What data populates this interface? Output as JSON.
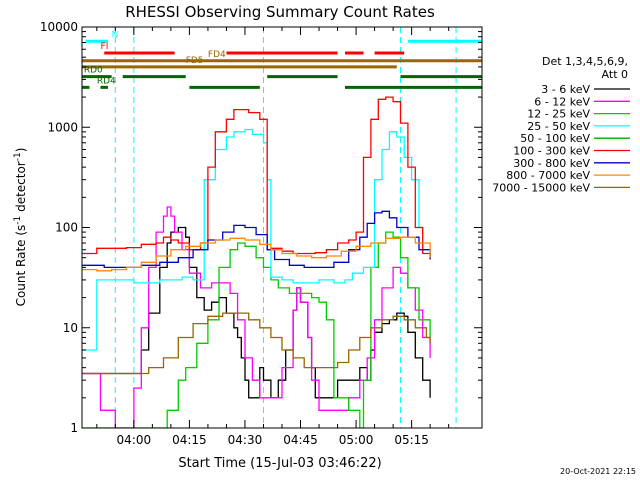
{
  "chart_data": {
    "type": "line",
    "title": "RHESSI Observing Summary Count Rates",
    "xlabel": "Start Time (15-Jul-03 03:46:22)",
    "ylabel_main": "Count Rate (s",
    "ylabel_sup1": "-1",
    "ylabel_mid": " detector",
    "ylabel_sup2": "-1",
    "ylabel_end": ")",
    "yscale": "log",
    "ylim": [
      1,
      10000
    ],
    "xlim_minutes": [
      -14,
      94
    ],
    "x_ticks": [
      {
        "m": 0,
        "label": "04:00"
      },
      {
        "m": 15,
        "label": "04:15"
      },
      {
        "m": 30,
        "label": "04:30"
      },
      {
        "m": 45,
        "label": "04:45"
      },
      {
        "m": 60,
        "label": "05:00"
      },
      {
        "m": 75,
        "label": "05:15"
      }
    ],
    "y_ticks": [
      {
        "v": 1,
        "label": "1"
      },
      {
        "v": 10,
        "label": "10"
      },
      {
        "v": 100,
        "label": "100"
      },
      {
        "v": 1000,
        "label": "1000"
      },
      {
        "v": 10000,
        "label": "10000"
      }
    ],
    "legend_header": [
      "Det 1,3,4,5,6,9,",
      "Att 0"
    ],
    "series": [
      {
        "name": "3 - 6 keV",
        "color": "#000000",
        "points": [
          [
            -14,
            3.5
          ],
          [
            -9,
            3.5
          ],
          [
            -4,
            3.5
          ],
          [
            0,
            3.5
          ],
          [
            2,
            6
          ],
          [
            4,
            14
          ],
          [
            7,
            40
          ],
          [
            9,
            70
          ],
          [
            10,
            90
          ],
          [
            12,
            100
          ],
          [
            14,
            80
          ],
          [
            15,
            40
          ],
          [
            17,
            20
          ],
          [
            19,
            15
          ],
          [
            21,
            18
          ],
          [
            23,
            20
          ],
          [
            25,
            14
          ],
          [
            27,
            10
          ],
          [
            28,
            8
          ],
          [
            29,
            5
          ],
          [
            30,
            3
          ],
          [
            31,
            2
          ],
          [
            33,
            2
          ],
          [
            34,
            4
          ],
          [
            35,
            3
          ],
          [
            37,
            2
          ],
          [
            39,
            3
          ],
          [
            41,
            6
          ],
          [
            43,
            15
          ],
          [
            44,
            25
          ],
          [
            45,
            18
          ],
          [
            47,
            8
          ],
          [
            48,
            4
          ],
          [
            49,
            2
          ],
          [
            50,
            2
          ],
          [
            52,
            2
          ],
          [
            55,
            3
          ],
          [
            58,
            3
          ],
          [
            61,
            4
          ],
          [
            63,
            3
          ],
          [
            64,
            6
          ],
          [
            65,
            9
          ],
          [
            67,
            11
          ],
          [
            69,
            12
          ],
          [
            71,
            14
          ],
          [
            73,
            13
          ],
          [
            74,
            9
          ],
          [
            76,
            5
          ],
          [
            78,
            3
          ],
          [
            80,
            2
          ]
        ]
      },
      {
        "name": "6 - 12 keV",
        "color": "#ff00ff",
        "points": [
          [
            -14,
            3.5
          ],
          [
            -9,
            1.5
          ],
          [
            -5,
            1
          ],
          [
            0,
            2.5
          ],
          [
            2,
            10
          ],
          [
            4,
            40
          ],
          [
            6,
            90
          ],
          [
            8,
            130
          ],
          [
            9,
            160
          ],
          [
            10,
            130
          ],
          [
            11,
            90
          ],
          [
            13,
            60
          ],
          [
            15,
            35
          ],
          [
            18,
            25
          ],
          [
            21,
            28
          ],
          [
            24,
            28
          ],
          [
            26,
            22
          ],
          [
            28,
            12
          ],
          [
            30,
            5
          ],
          [
            32,
            3
          ],
          [
            34,
            2
          ],
          [
            37,
            2
          ],
          [
            40,
            4
          ],
          [
            43,
            15
          ],
          [
            44,
            25
          ],
          [
            45,
            18
          ],
          [
            47,
            8
          ],
          [
            48,
            3
          ],
          [
            50,
            1.5
          ],
          [
            54,
            1.5
          ],
          [
            58,
            2
          ],
          [
            61,
            3
          ],
          [
            63,
            5
          ],
          [
            65,
            12
          ],
          [
            67,
            25
          ],
          [
            70,
            40
          ],
          [
            72,
            35
          ],
          [
            74,
            25
          ],
          [
            76,
            15
          ],
          [
            78,
            8
          ],
          [
            80,
            5
          ]
        ]
      },
      {
        "name": "12 - 25 keV",
        "color": "#00cc00",
        "points": [
          [
            -14,
            1
          ],
          [
            -9,
            1
          ],
          [
            -3,
            1
          ],
          [
            2,
            1
          ],
          [
            5,
            1
          ],
          [
            9,
            1.5
          ],
          [
            12,
            3
          ],
          [
            14,
            4
          ],
          [
            17,
            7
          ],
          [
            20,
            12
          ],
          [
            23,
            40
          ],
          [
            26,
            60
          ],
          [
            28,
            70
          ],
          [
            30,
            65
          ],
          [
            33,
            50
          ],
          [
            35,
            40
          ],
          [
            37,
            30
          ],
          [
            39,
            25
          ],
          [
            42,
            22
          ],
          [
            45,
            22
          ],
          [
            48,
            20
          ],
          [
            50,
            18
          ],
          [
            52,
            12
          ],
          [
            54,
            2
          ],
          [
            58,
            1.5
          ],
          [
            61,
            1
          ],
          [
            62,
            3
          ],
          [
            64,
            40
          ],
          [
            66,
            70
          ],
          [
            68,
            90
          ],
          [
            70,
            80
          ],
          [
            72,
            50
          ],
          [
            74,
            25
          ],
          [
            77,
            12
          ],
          [
            80,
            8
          ]
        ]
      },
      {
        "name": "25 - 50 keV",
        "color": "#00ffff",
        "points": [
          [
            -14,
            6
          ],
          [
            -11,
            6
          ],
          [
            -10,
            30
          ],
          [
            -7,
            30
          ],
          [
            -3,
            30
          ],
          [
            0,
            28
          ],
          [
            4,
            28
          ],
          [
            7,
            30
          ],
          [
            10,
            30
          ],
          [
            13,
            32
          ],
          [
            16,
            30
          ],
          [
            19,
            300
          ],
          [
            22,
            600
          ],
          [
            25,
            800
          ],
          [
            27,
            900
          ],
          [
            30,
            950
          ],
          [
            32,
            850
          ],
          [
            35,
            700
          ],
          [
            36,
            300
          ],
          [
            37,
            32
          ],
          [
            40,
            30
          ],
          [
            43,
            28
          ],
          [
            46,
            28
          ],
          [
            50,
            30
          ],
          [
            54,
            28
          ],
          [
            57,
            30
          ],
          [
            59,
            35
          ],
          [
            62,
            40
          ],
          [
            65,
            300
          ],
          [
            67,
            600
          ],
          [
            69,
            900
          ],
          [
            71,
            800
          ],
          [
            73,
            500
          ],
          [
            75,
            300
          ],
          [
            77,
            100
          ],
          [
            78,
            60
          ],
          [
            80,
            60
          ]
        ]
      },
      {
        "name": "50 - 100 keV",
        "color": "#00aa00",
        "points": []
      },
      {
        "name": "100 - 300 keV",
        "color": "#ff0000",
        "points": [
          [
            -14,
            55
          ],
          [
            -10,
            62
          ],
          [
            -6,
            62
          ],
          [
            -2,
            63
          ],
          [
            2,
            68
          ],
          [
            6,
            70
          ],
          [
            8,
            80
          ],
          [
            10,
            75
          ],
          [
            12,
            70
          ],
          [
            15,
            60
          ],
          [
            18,
            70
          ],
          [
            20,
            400
          ],
          [
            22,
            900
          ],
          [
            25,
            1200
          ],
          [
            27,
            1500
          ],
          [
            29,
            1500
          ],
          [
            31,
            1400
          ],
          [
            34,
            1200
          ],
          [
            36,
            60
          ],
          [
            37,
            62
          ],
          [
            40,
            58
          ],
          [
            43,
            55
          ],
          [
            46,
            55
          ],
          [
            49,
            56
          ],
          [
            52,
            60
          ],
          [
            55,
            70
          ],
          [
            58,
            75
          ],
          [
            60,
            90
          ],
          [
            62,
            500
          ],
          [
            64,
            1200
          ],
          [
            66,
            1900
          ],
          [
            68,
            2000
          ],
          [
            70,
            1800
          ],
          [
            72,
            1100
          ],
          [
            74,
            400
          ],
          [
            76,
            100
          ],
          [
            78,
            55
          ],
          [
            80,
            50
          ]
        ]
      },
      {
        "name": "300 - 800 keV",
        "color": "#0000cc",
        "points": [
          [
            -14,
            42
          ],
          [
            -8,
            40
          ],
          [
            -3,
            40
          ],
          [
            2,
            42
          ],
          [
            7,
            45
          ],
          [
            12,
            50
          ],
          [
            16,
            60
          ],
          [
            20,
            75
          ],
          [
            24,
            90
          ],
          [
            27,
            105
          ],
          [
            30,
            100
          ],
          [
            33,
            85
          ],
          [
            36,
            60
          ],
          [
            38,
            48
          ],
          [
            42,
            42
          ],
          [
            46,
            40
          ],
          [
            50,
            40
          ],
          [
            54,
            45
          ],
          [
            58,
            60
          ],
          [
            61,
            80
          ],
          [
            63,
            110
          ],
          [
            65,
            140
          ],
          [
            67,
            145
          ],
          [
            69,
            125
          ],
          [
            71,
            100
          ],
          [
            74,
            80
          ],
          [
            77,
            60
          ],
          [
            80,
            48
          ]
        ]
      },
      {
        "name": "800 - 7000 keV",
        "color": "#ff8800",
        "points": [
          [
            -14,
            38
          ],
          [
            -10,
            37
          ],
          [
            -6,
            38
          ],
          [
            -2,
            40
          ],
          [
            2,
            45
          ],
          [
            6,
            52
          ],
          [
            10,
            60
          ],
          [
            14,
            65
          ],
          [
            18,
            70
          ],
          [
            22,
            75
          ],
          [
            26,
            78
          ],
          [
            30,
            75
          ],
          [
            34,
            68
          ],
          [
            37,
            60
          ],
          [
            40,
            55
          ],
          [
            44,
            52
          ],
          [
            48,
            50
          ],
          [
            52,
            52
          ],
          [
            56,
            58
          ],
          [
            60,
            65
          ],
          [
            64,
            70
          ],
          [
            68,
            78
          ],
          [
            72,
            80
          ],
          [
            76,
            70
          ],
          [
            80,
            50
          ]
        ]
      },
      {
        "name": "7000 - 15000 keV",
        "color": "#996600",
        "points": [
          [
            -14,
            3.5
          ],
          [
            -10,
            3.5
          ],
          [
            -5,
            3.5
          ],
          [
            0,
            3.5
          ],
          [
            4,
            4
          ],
          [
            8,
            5
          ],
          [
            12,
            8
          ],
          [
            16,
            11
          ],
          [
            20,
            13
          ],
          [
            24,
            14
          ],
          [
            28,
            14
          ],
          [
            31,
            12
          ],
          [
            34,
            10
          ],
          [
            37,
            8
          ],
          [
            40,
            6
          ],
          [
            43,
            5
          ],
          [
            46,
            4
          ],
          [
            49,
            4
          ],
          [
            52,
            4
          ],
          [
            55,
            4.5
          ],
          [
            58,
            6
          ],
          [
            61,
            8
          ],
          [
            64,
            10
          ],
          [
            67,
            12
          ],
          [
            70,
            13
          ],
          [
            73,
            12
          ],
          [
            76,
            10
          ],
          [
            79,
            8
          ],
          [
            80,
            7
          ]
        ]
      }
    ],
    "flag_bars": [
      {
        "label": "N",
        "color": "#00ffff",
        "segments": [
          [
            -13,
            -7
          ],
          [
            74,
            94
          ]
        ],
        "level": 7200
      },
      {
        "label": "FI",
        "color": "#ff0000",
        "segments": [
          [
            -8,
            11
          ],
          [
            25,
            55
          ],
          [
            57,
            62
          ],
          [
            65,
            73
          ]
        ],
        "level": 5500
      },
      {
        "label": "FD4",
        "color": "#996600",
        "segments": [
          [
            -14,
            94
          ]
        ],
        "level": 4600
      },
      {
        "label": "FD5",
        "color": "#996600",
        "segments": [
          [
            -14,
            71
          ]
        ],
        "level": 4000
      },
      {
        "label": "RD0",
        "color": "#006600",
        "segments": [
          [
            -14,
            -6
          ],
          [
            -3,
            14
          ],
          [
            36,
            55
          ],
          [
            72,
            94
          ]
        ],
        "level": 3200
      },
      {
        "label": "RD4",
        "color": "#006600",
        "segments": [
          [
            -14,
            -12
          ],
          [
            -9,
            -7
          ],
          [
            15,
            34
          ],
          [
            57,
            94
          ]
        ],
        "level": 2500
      }
    ],
    "vlines_minutes": [
      -5,
      0,
      35,
      72,
      87
    ],
    "timestamp": "20-Oct-2021 22:15"
  }
}
